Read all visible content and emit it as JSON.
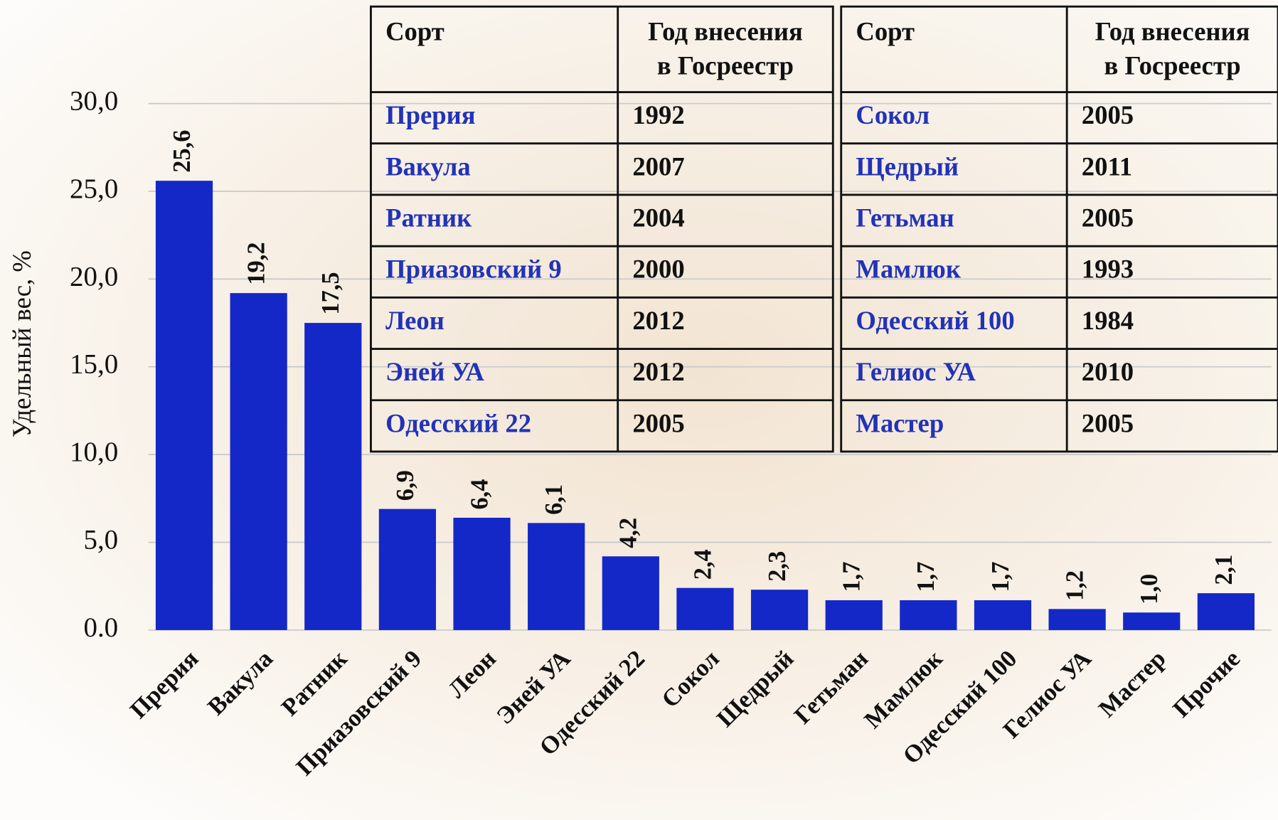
{
  "chart_data": {
    "type": "bar",
    "y_axis_label": "Удельный вес, %",
    "categories": [
      "Прерия",
      "Вакула",
      "Ратник",
      "Приазовский 9",
      "Леон",
      "Эней УА",
      "Одесский 22",
      "Сокол",
      "Щедрый",
      "Гетьман",
      "Мамлюк",
      "Одесский 100",
      "Гелиос УА",
      "Мастер",
      "Прочие"
    ],
    "values": [
      25.6,
      19.2,
      17.5,
      6.9,
      6.4,
      6.1,
      4.2,
      2.4,
      2.3,
      1.7,
      1.7,
      1.7,
      1.2,
      1.0,
      2.1
    ],
    "value_labels": [
      "25,6",
      "19,2",
      "17,5",
      "6,9",
      "6,4",
      "6,1",
      "4,2",
      "2,4",
      "2,3",
      "1,7",
      "1,7",
      "1,7",
      "1,2",
      "1,0",
      "2,1"
    ],
    "color": "#1428c8",
    "ylim": [
      0,
      30
    ],
    "yticks": [
      {
        "value": 0,
        "label": "0.0"
      },
      {
        "value": 5,
        "label": "5,0"
      },
      {
        "value": 10,
        "label": "10,0"
      },
      {
        "value": 15,
        "label": "15,0"
      },
      {
        "value": 20,
        "label": "20,0"
      },
      {
        "value": 25,
        "label": "25,0"
      },
      {
        "value": 30,
        "label": "30,0"
      }
    ],
    "grid": true
  },
  "tables": [
    {
      "header": [
        [
          "Сорт"
        ],
        [
          "Год внесения",
          "в Госреестр"
        ]
      ],
      "rows": [
        [
          "Прерия",
          1992
        ],
        [
          "Вакула",
          2007
        ],
        [
          "Ратник",
          2004
        ],
        [
          "Приазовский 9",
          2000
        ],
        [
          "Леон",
          2012
        ],
        [
          "Эней УА",
          2012
        ],
        [
          "Одесский 22",
          2005
        ]
      ]
    },
    {
      "header": [
        [
          "Сорт"
        ],
        [
          "Год внесения",
          "в Госреестр"
        ]
      ],
      "rows": [
        [
          "Сокол",
          2005
        ],
        [
          "Щедрый",
          2011
        ],
        [
          "Гетьман",
          2005
        ],
        [
          "Мамлюк",
          1993
        ],
        [
          "Одесский 100",
          1984
        ],
        [
          "Гелиос УА",
          2010
        ],
        [
          "Мастер",
          2005
        ]
      ]
    }
  ]
}
